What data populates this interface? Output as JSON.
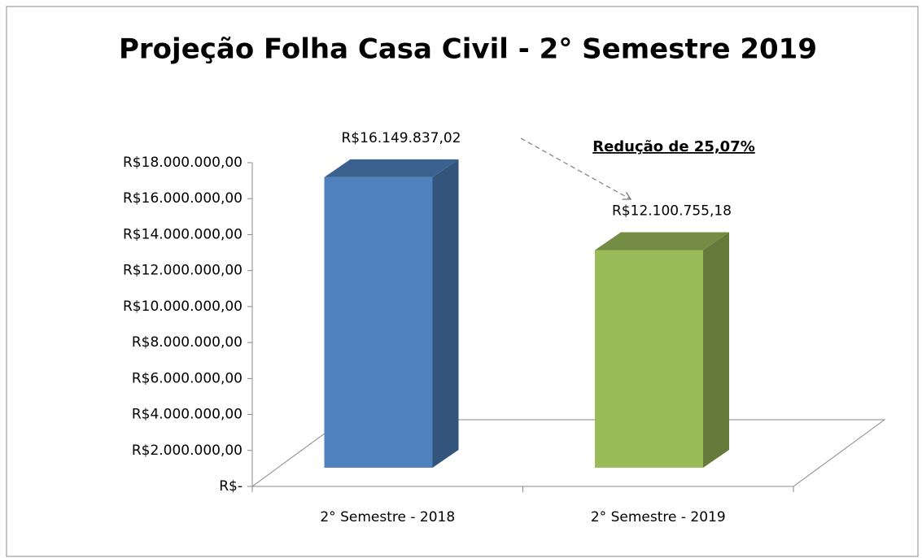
{
  "chart_data": {
    "type": "bar3d",
    "title": "Projeção Folha Casa Civil - 2° Semestre 2019",
    "categories": [
      "2° Semestre - 2018",
      "2° Semestre - 2019"
    ],
    "values": [
      16149837.02,
      12100755.18
    ],
    "value_labels": [
      "R$16.149.837,02",
      "R$12.100.755,18"
    ],
    "colors": [
      "#4f81bd",
      "#9bbb59"
    ],
    "annotation": "Redução de 25,07%",
    "ylim": [
      0,
      18000000
    ],
    "yticks": [
      {
        "value": 0,
        "label": "R$-"
      },
      {
        "value": 2000000,
        "label": "R$2.000.000,00"
      },
      {
        "value": 4000000,
        "label": "R$4.000.000,00"
      },
      {
        "value": 6000000,
        "label": "R$6.000.000,00"
      },
      {
        "value": 8000000,
        "label": "R$8.000.000,00"
      },
      {
        "value": 10000000,
        "label": "R$10.000.000,00"
      },
      {
        "value": 12000000,
        "label": "R$12.000.000,00"
      },
      {
        "value": 14000000,
        "label": "R$14.000.000,00"
      },
      {
        "value": 16000000,
        "label": "R$16.000.000,00"
      },
      {
        "value": 18000000,
        "label": "R$18.000.000,00"
      }
    ]
  }
}
